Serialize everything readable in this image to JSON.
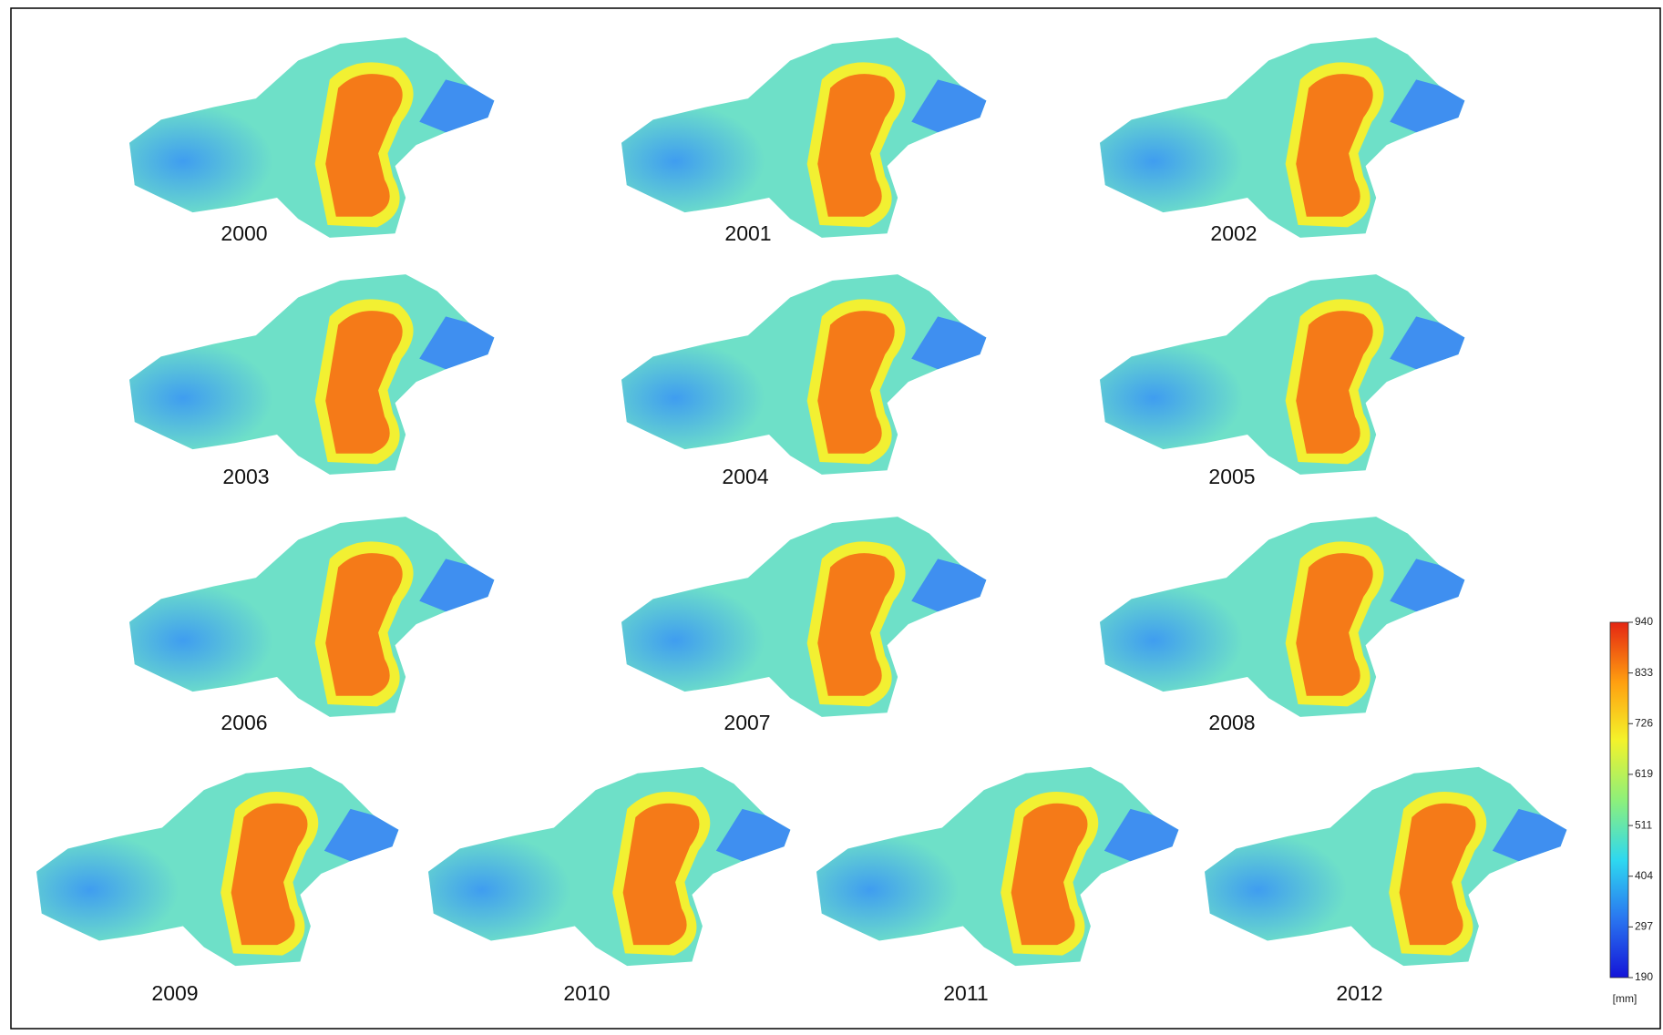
{
  "maps": [
    {
      "label": "2000"
    },
    {
      "label": "2001"
    },
    {
      "label": "2002"
    },
    {
      "label": "2003"
    },
    {
      "label": "2004"
    },
    {
      "label": "2005"
    },
    {
      "label": "2006"
    },
    {
      "label": "2007"
    },
    {
      "label": "2008"
    },
    {
      "label": "2009"
    },
    {
      "label": "2010"
    },
    {
      "label": "2011"
    },
    {
      "label": "2012"
    }
  ],
  "colorbar": {
    "ticks": [
      190,
      297,
      404,
      511,
      619,
      726,
      833,
      940
    ],
    "unit": "[mm]"
  }
}
